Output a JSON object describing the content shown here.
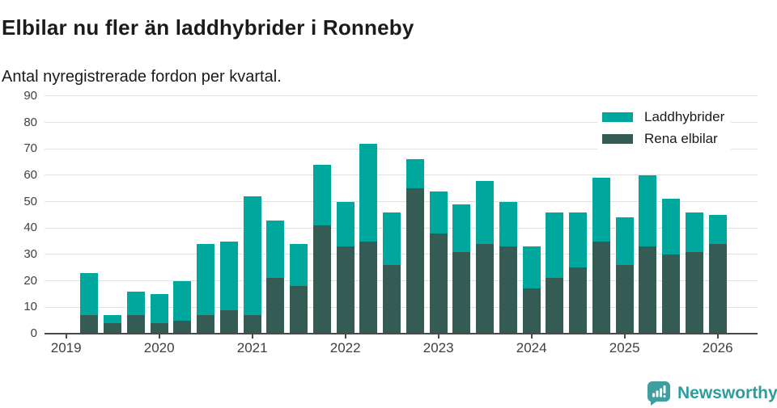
{
  "header": {
    "title": "Elbilar nu fler än laddhybrider i Ronneby",
    "subtitle": "Antal nyregistrerade fordon per kvartal."
  },
  "colors": {
    "laddhybrider": "#00a79c",
    "rena_elbilar": "#355b55",
    "grid": "#e1e1e1",
    "axis": "#4a4a4a",
    "tick_text": "#404040",
    "brand": "#2f9c9c"
  },
  "legend": [
    {
      "label": "Laddhybrider",
      "color": "#00a79c"
    },
    {
      "label": "Rena elbilar",
      "color": "#355b55"
    }
  ],
  "footer": {
    "brand": "Newsworthy",
    "icon": "newsworthy-bar-chart-bubble-icon"
  },
  "chart_data": {
    "type": "bar",
    "stacked": true,
    "title": "Elbilar nu fler än laddhybrider i Ronneby",
    "subtitle": "Antal nyregistrerade fordon per kvartal.",
    "xlabel": "",
    "ylabel": "",
    "ylim": [
      0,
      90
    ],
    "ytick_step": 10,
    "yticks": [
      0,
      10,
      20,
      30,
      40,
      50,
      60,
      70,
      80,
      90
    ],
    "x_axis_year_labels": [
      "2019",
      "2020",
      "2021",
      "2022",
      "2023",
      "2024",
      "2025",
      "2026"
    ],
    "grid": "horizontal",
    "legend_position": "top-right",
    "categories": [
      "2019 Q2",
      "2019 Q3",
      "2019 Q4",
      "2020 Q1",
      "2020 Q2",
      "2020 Q3",
      "2020 Q4",
      "2021 Q1",
      "2021 Q2",
      "2021 Q3",
      "2021 Q4",
      "2022 Q1",
      "2022 Q2",
      "2022 Q3",
      "2022 Q4",
      "2023 Q1",
      "2023 Q2",
      "2023 Q3",
      "2023 Q4",
      "2024 Q1",
      "2024 Q2",
      "2024 Q3",
      "2024 Q4",
      "2025 Q1",
      "2025 Q2",
      "2025 Q3",
      "2025 Q4",
      "2026 Q1"
    ],
    "series": [
      {
        "name": "Rena elbilar",
        "color": "#355b55",
        "stack_position": "bottom",
        "values": [
          7,
          4,
          7,
          4,
          5,
          7,
          9,
          7,
          21,
          18,
          41,
          33,
          35,
          26,
          55,
          38,
          31,
          34,
          33,
          17,
          21,
          25,
          35,
          26,
          33,
          30,
          31,
          34
        ]
      },
      {
        "name": "Laddhybrider",
        "color": "#00a79c",
        "stack_position": "top",
        "values": [
          16,
          3,
          9,
          11,
          15,
          27,
          26,
          45,
          22,
          16,
          23,
          17,
          37,
          20,
          11,
          16,
          18,
          24,
          17,
          16,
          25,
          21,
          24,
          18,
          27,
          21,
          15,
          11
        ]
      }
    ],
    "totals": [
      23,
      7,
      16,
      15,
      20,
      34,
      35,
      52,
      43,
      34,
      64,
      50,
      72,
      46,
      66,
      54,
      49,
      58,
      50,
      33,
      46,
      46,
      59,
      44,
      60,
      51,
      46,
      45
    ]
  }
}
